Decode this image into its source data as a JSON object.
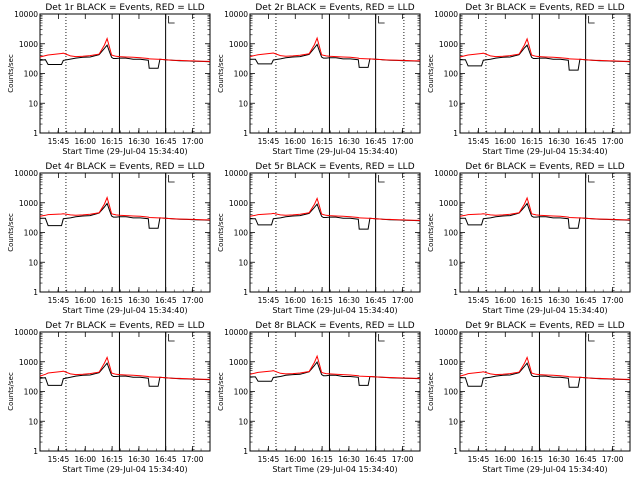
{
  "chart_data": {
    "type": "line",
    "layout": "3x3 grid",
    "y_scale": "log",
    "ylim": [
      1,
      10000
    ],
    "y_ticks": [
      "1",
      "10",
      "100",
      "1000",
      "10000"
    ],
    "ylabel": "Counts/sec",
    "xlabel": "Start Time (29-Jul-04 15:34:40)",
    "xlim_minutes": [
      0,
      95
    ],
    "x_ticks": [
      {
        "label": "15:45",
        "t": 10.3
      },
      {
        "label": "16:00",
        "t": 25.3
      },
      {
        "label": "16:15",
        "t": 40.3
      },
      {
        "label": "16:30",
        "t": 55.3
      },
      {
        "label": "16:45",
        "t": 70.3
      },
      {
        "label": "17:00",
        "t": 85.3
      }
    ],
    "series_legend": {
      "black": "Events",
      "red": "LLD"
    },
    "colors": {
      "events": "#000000",
      "lld": "#ff0000",
      "axis": "#000000"
    },
    "sample_times": [
      0,
      3,
      4.5,
      12,
      13,
      17,
      20,
      24,
      28,
      33,
      36,
      37.5,
      39,
      40,
      41,
      42.5,
      44.5,
      48,
      52,
      56,
      60.5,
      61,
      66,
      67,
      70,
      74,
      78,
      82,
      86,
      90,
      95
    ],
    "vertical_markers": [
      {
        "t": 14.5,
        "style": "dotted"
      },
      {
        "t": 44.4,
        "style": "solid"
      },
      {
        "t": 70.2,
        "style": "solid"
      },
      {
        "t": 86.0,
        "style": "dotted"
      }
    ],
    "panels": [
      {
        "title": "Det 1r BLACK = Events, RED = LLD",
        "events": [
          280,
          290,
          200,
          200,
          275,
          305,
          330,
          350,
          360,
          430,
          700,
          900,
          500,
          350,
          320,
          320,
          330,
          330,
          300,
          300,
          280,
          150,
          150,
          300,
          290,
          280,
          270,
          265,
          260,
          255,
          250
        ],
        "lld": [
          360,
          400,
          420,
          470,
          480,
          390,
          370,
          380,
          400,
          450,
          900,
          1500,
          700,
          420,
          400,
          380,
          370,
          360,
          350,
          340,
          320,
          310,
          300,
          300,
          290,
          280,
          275,
          270,
          265,
          260,
          255
        ]
      },
      {
        "title": "Det 2r BLACK = Events, RED = LLD",
        "events": [
          300,
          300,
          210,
          210,
          285,
          310,
          340,
          360,
          370,
          440,
          720,
          950,
          520,
          360,
          330,
          330,
          340,
          340,
          310,
          310,
          290,
          160,
          160,
          310,
          300,
          290,
          280,
          275,
          270,
          265,
          260
        ],
        "lld": [
          370,
          410,
          430,
          480,
          490,
          400,
          380,
          390,
          410,
          460,
          920,
          1550,
          720,
          430,
          410,
          390,
          380,
          370,
          360,
          350,
          330,
          320,
          310,
          310,
          300,
          290,
          285,
          280,
          275,
          270,
          265
        ]
      },
      {
        "title": "Det 3r BLACK = Events, RED = LLD",
        "events": [
          290,
          290,
          180,
          180,
          280,
          300,
          330,
          350,
          360,
          430,
          720,
          900,
          500,
          350,
          320,
          320,
          330,
          330,
          300,
          300,
          280,
          130,
          130,
          300,
          290,
          280,
          270,
          265,
          260,
          255,
          250
        ],
        "lld": [
          360,
          400,
          420,
          470,
          480,
          390,
          370,
          380,
          400,
          450,
          900,
          1450,
          700,
          420,
          400,
          380,
          370,
          360,
          350,
          340,
          320,
          310,
          300,
          300,
          290,
          280,
          275,
          270,
          265,
          260,
          255
        ]
      },
      {
        "title": "Det 4r BLACK = Events, RED = LLD",
        "events": [
          300,
          300,
          170,
          170,
          290,
          310,
          340,
          360,
          370,
          450,
          720,
          950,
          520,
          360,
          330,
          330,
          340,
          340,
          310,
          310,
          290,
          140,
          140,
          310,
          300,
          290,
          280,
          275,
          270,
          265,
          260
        ],
        "lld": [
          350,
          380,
          400,
          420,
          430,
          390,
          380,
          390,
          410,
          460,
          900,
          1500,
          720,
          430,
          410,
          390,
          380,
          370,
          360,
          350,
          330,
          320,
          310,
          310,
          300,
          290,
          285,
          280,
          275,
          270,
          265
        ]
      },
      {
        "title": "Det 5r BLACK = Events, RED = LLD",
        "events": [
          290,
          290,
          180,
          180,
          290,
          310,
          340,
          360,
          370,
          440,
          700,
          900,
          500,
          350,
          320,
          320,
          330,
          330,
          300,
          300,
          280,
          130,
          130,
          300,
          290,
          280,
          270,
          265,
          260,
          255,
          250
        ],
        "lld": [
          350,
          380,
          400,
          430,
          440,
          390,
          380,
          390,
          410,
          460,
          880,
          1400,
          700,
          420,
          400,
          380,
          370,
          360,
          350,
          340,
          320,
          310,
          300,
          300,
          290,
          280,
          275,
          270,
          265,
          260,
          255
        ]
      },
      {
        "title": "Det 6r BLACK = Events, RED = LLD",
        "events": [
          300,
          300,
          180,
          180,
          290,
          310,
          340,
          360,
          370,
          450,
          720,
          950,
          520,
          360,
          330,
          330,
          340,
          340,
          310,
          310,
          290,
          140,
          140,
          310,
          300,
          290,
          280,
          275,
          270,
          265,
          260
        ],
        "lld": [
          350,
          380,
          400,
          420,
          430,
          390,
          380,
          390,
          410,
          460,
          900,
          1450,
          720,
          430,
          410,
          390,
          380,
          370,
          360,
          350,
          330,
          320,
          310,
          310,
          300,
          290,
          285,
          280,
          275,
          270,
          265
        ]
      },
      {
        "title": "Det 7r BLACK = Events, RED = LLD",
        "events": [
          280,
          290,
          160,
          160,
          270,
          300,
          330,
          350,
          360,
          430,
          700,
          900,
          500,
          350,
          320,
          320,
          330,
          330,
          300,
          300,
          280,
          150,
          150,
          300,
          290,
          280,
          270,
          265,
          260,
          255,
          250
        ],
        "lld": [
          330,
          380,
          420,
          470,
          480,
          390,
          370,
          380,
          400,
          450,
          900,
          1400,
          700,
          420,
          400,
          380,
          370,
          360,
          350,
          340,
          320,
          310,
          300,
          300,
          290,
          280,
          275,
          270,
          265,
          260,
          255
        ]
      },
      {
        "title": "Det 8r BLACK = Events, RED = LLD",
        "events": [
          310,
          310,
          220,
          220,
          295,
          320,
          350,
          370,
          380,
          460,
          740,
          980,
          540,
          370,
          340,
          340,
          350,
          350,
          320,
          320,
          300,
          160,
          160,
          320,
          310,
          300,
          290,
          285,
          280,
          275,
          270
        ],
        "lld": [
          380,
          420,
          440,
          490,
          500,
          410,
          390,
          400,
          420,
          470,
          940,
          1550,
          740,
          440,
          420,
          400,
          390,
          380,
          370,
          360,
          340,
          330,
          320,
          320,
          310,
          300,
          295,
          290,
          285,
          280,
          275
        ]
      },
      {
        "title": "Det 9r BLACK = Events, RED = LLD",
        "events": [
          290,
          290,
          150,
          150,
          280,
          300,
          330,
          350,
          360,
          430,
          700,
          900,
          500,
          350,
          320,
          320,
          330,
          330,
          300,
          300,
          280,
          140,
          140,
          300,
          290,
          280,
          270,
          265,
          260,
          255,
          250
        ],
        "lld": [
          330,
          370,
          400,
          450,
          460,
          390,
          370,
          380,
          400,
          450,
          880,
          1400,
          700,
          420,
          400,
          380,
          370,
          360,
          350,
          340,
          320,
          310,
          300,
          300,
          290,
          280,
          275,
          270,
          265,
          260,
          255
        ]
      }
    ]
  }
}
